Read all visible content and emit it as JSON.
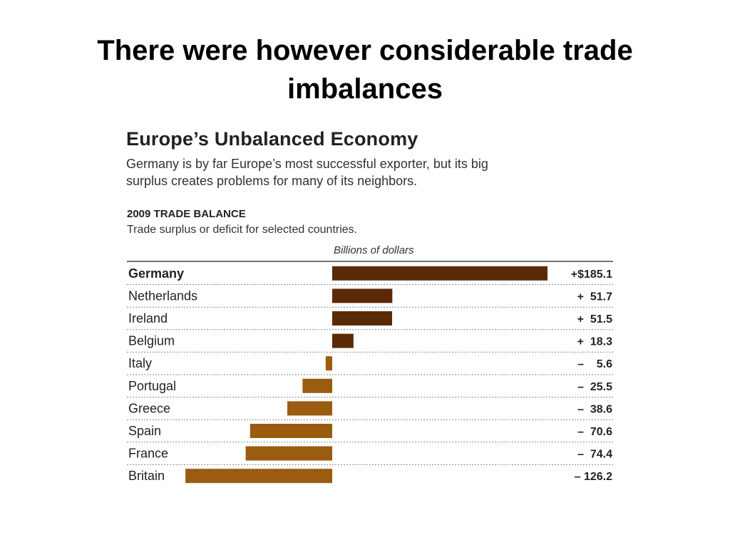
{
  "slide": {
    "title_line1": "There were however considerable trade",
    "title_line2": "imbalances"
  },
  "chart_header": {
    "title": "Europe’s Unbalanced Economy",
    "desc_line1": "Germany is by far Europe’s most successful exporter, but its big",
    "desc_line2": "surplus creates problems for many of its neighbors.",
    "section_label": "2009 TRADE BALANCE",
    "section_sub": "Trade surplus or deficit for selected countries.",
    "units": "Billions of dollars"
  },
  "colors": {
    "surplus": "#5a2a06",
    "deficit": "#9a5c0e"
  },
  "chart_data": {
    "type": "bar",
    "orientation": "horizontal",
    "title": "2009 TRADE BALANCE",
    "xlabel": "Billions of dollars",
    "categories": [
      "Germany",
      "Netherlands",
      "Ireland",
      "Belgium",
      "Italy",
      "Portugal",
      "Greece",
      "Spain",
      "France",
      "Britain"
    ],
    "values": [
      185.1,
      51.7,
      51.5,
      18.3,
      -5.6,
      -25.5,
      -38.6,
      -70.6,
      -74.4,
      -126.2
    ],
    "value_labels": [
      "+$185.1",
      "+  51.7",
      "+  51.5",
      "+  18.3",
      "–    5.6",
      "–  25.5",
      "–  38.6",
      "–  70.6",
      "–  74.4",
      "– 126.2"
    ],
    "bold_categories": [
      "Germany"
    ],
    "gridlines": "dotted row separators"
  }
}
